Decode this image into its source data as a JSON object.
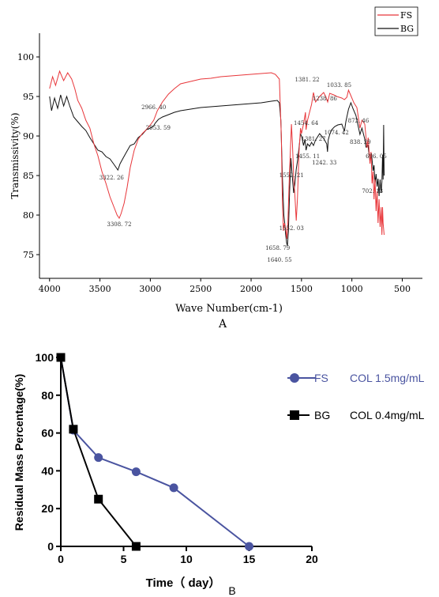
{
  "chart_data": [
    {
      "type": "line",
      "xlabel": "Wave Number(cm-1)",
      "ylabel": "Transmissivity(%)",
      "panel_label": "A",
      "xlim": [
        4100,
        300
      ],
      "ylim": [
        72,
        103
      ],
      "x_ticks": [
        "4000",
        "3500",
        "3000",
        "2500",
        "2000",
        "1500",
        "1000",
        "500"
      ],
      "y_ticks": [
        "75",
        "80",
        "85",
        "90",
        "95",
        "100"
      ],
      "legend_position": "top-right",
      "colors": {
        "FS": "#e8363a",
        "BG": "#111111"
      },
      "series": [
        {
          "name": "FS",
          "points": [
            [
              4000,
              96
            ],
            [
              3970,
              97.5
            ],
            [
              3940,
              96.4
            ],
            [
              3900,
              98.2
            ],
            [
              3860,
              97
            ],
            [
              3820,
              98
            ],
            [
              3780,
              97.2
            ],
            [
              3750,
              96
            ],
            [
              3720,
              94.5
            ],
            [
              3680,
              93.5
            ],
            [
              3640,
              92
            ],
            [
              3600,
              91
            ],
            [
              3560,
              89
            ],
            [
              3520,
              87.5
            ],
            [
              3480,
              85.5
            ],
            [
              3440,
              84
            ],
            [
              3400,
              82.3
            ],
            [
              3360,
              81
            ],
            [
              3330,
              80
            ],
            [
              3309,
              79.6
            ],
            [
              3290,
              80.2
            ],
            [
              3260,
              81.5
            ],
            [
              3230,
              83.5
            ],
            [
              3200,
              86
            ],
            [
              3160,
              88.2
            ],
            [
              3120,
              89.6
            ],
            [
              3080,
              90.3
            ],
            [
              3040,
              90.8
            ],
            [
              3000,
              91.4
            ],
            [
              2966,
              92
            ],
            [
              2930,
              93.2
            ],
            [
              2880,
              94.3
            ],
            [
              2820,
              95.3
            ],
            [
              2760,
              96
            ],
            [
              2700,
              96.6
            ],
            [
              2600,
              96.9
            ],
            [
              2500,
              97.2
            ],
            [
              2400,
              97.3
            ],
            [
              2300,
              97.5
            ],
            [
              2200,
              97.6
            ],
            [
              2100,
              97.7
            ],
            [
              2000,
              97.8
            ],
            [
              1900,
              97.9
            ],
            [
              1800,
              98
            ],
            [
              1760,
              97.8
            ],
            [
              1720,
              97.2
            ],
            [
              1700,
              90
            ],
            [
              1690,
              82
            ],
            [
              1680,
              78
            ],
            [
              1670,
              79
            ],
            [
              1658,
              78.4
            ],
            [
              1645,
              77
            ],
            [
              1635,
              79
            ],
            [
              1620,
              85
            ],
            [
              1600,
              91.5
            ],
            [
              1590,
              89
            ],
            [
              1575,
              84
            ],
            [
              1568,
              83
            ],
            [
              1552,
              79.3
            ],
            [
              1540,
              82
            ],
            [
              1525,
              88
            ],
            [
              1510,
              91
            ],
            [
              1500,
              90.3
            ],
            [
              1480,
              91.5
            ],
            [
              1460,
              93
            ],
            [
              1455,
              90.8
            ],
            [
              1440,
              92
            ],
            [
              1400,
              94
            ],
            [
              1381,
              95.5
            ],
            [
              1360,
              94.3
            ],
            [
              1320,
              95
            ],
            [
              1280,
              95.5
            ],
            [
              1260,
              95
            ],
            [
              1240,
              94.3
            ],
            [
              1220,
              95.4
            ],
            [
              1180,
              95.2
            ],
            [
              1150,
              95
            ],
            [
              1100,
              94.8
            ],
            [
              1074,
              94.6
            ],
            [
              1050,
              94.9
            ],
            [
              1033,
              95.8
            ],
            [
              1010,
              95.1
            ],
            [
              980,
              94.2
            ],
            [
              950,
              93.6
            ],
            [
              920,
              91
            ],
            [
              900,
              92
            ],
            [
              872,
              91.5
            ],
            [
              850,
              88.5
            ],
            [
              838,
              89.8
            ],
            [
              820,
              86.5
            ],
            [
              810,
              88
            ],
            [
              800,
              84
            ],
            [
              790,
              85.5
            ],
            [
              780,
              82
            ],
            [
              770,
              84.5
            ],
            [
              760,
              80.5
            ],
            [
              750,
              83
            ],
            [
              740,
              79
            ],
            [
              730,
              82
            ],
            [
              720,
              78.5
            ],
            [
              710,
              81
            ],
            [
              702,
              77.5
            ],
            [
              696,
              81
            ],
            [
              690,
              79
            ],
            [
              680,
              77.5
            ]
          ]
        },
        {
          "name": "BG",
          "points": [
            [
              4000,
              95
            ],
            [
              3980,
              93.2
            ],
            [
              3950,
              94.8
            ],
            [
              3920,
              93.5
            ],
            [
              3890,
              95.2
            ],
            [
              3860,
              93.8
            ],
            [
              3830,
              95
            ],
            [
              3800,
              93.8
            ],
            [
              3760,
              92.4
            ],
            [
              3720,
              91.8
            ],
            [
              3680,
              91.2
            ],
            [
              3640,
              90.7
            ],
            [
              3600,
              89.8
            ],
            [
              3560,
              89
            ],
            [
              3520,
              88.2
            ],
            [
              3480,
              88
            ],
            [
              3440,
              87.4
            ],
            [
              3400,
              87.1
            ],
            [
              3360,
              86.4
            ],
            [
              3322,
              85.7
            ],
            [
              3300,
              86.5
            ],
            [
              3270,
              87.2
            ],
            [
              3240,
              87.9
            ],
            [
              3200,
              88.8
            ],
            [
              3160,
              89
            ],
            [
              3120,
              89.8
            ],
            [
              3080,
              90.2
            ],
            [
              3040,
              90.8
            ],
            [
              3000,
              91
            ],
            [
              2966,
              91.3
            ],
            [
              2953,
              91.6
            ],
            [
              2920,
              92.1
            ],
            [
              2880,
              92.4
            ],
            [
              2820,
              92.7
            ],
            [
              2760,
              93
            ],
            [
              2700,
              93.2
            ],
            [
              2600,
              93.4
            ],
            [
              2500,
              93.6
            ],
            [
              2400,
              93.7
            ],
            [
              2300,
              93.8
            ],
            [
              2200,
              93.9
            ],
            [
              2100,
              94
            ],
            [
              2000,
              94.1
            ],
            [
              1900,
              94.2
            ],
            [
              1800,
              94.4
            ],
            [
              1740,
              94.5
            ],
            [
              1720,
              94.2
            ],
            [
              1705,
              92
            ],
            [
              1690,
              85
            ],
            [
              1675,
              80
            ],
            [
              1665,
              78.8
            ],
            [
              1658,
              77.6
            ],
            [
              1648,
              76.5
            ],
            [
              1640,
              76.1
            ],
            [
              1630,
              78
            ],
            [
              1618,
              83
            ],
            [
              1605,
              87.2
            ],
            [
              1592,
              85
            ],
            [
              1578,
              82.8
            ],
            [
              1565,
              84
            ],
            [
              1552,
              85.8
            ],
            [
              1540,
              86.8
            ],
            [
              1525,
              88.5
            ],
            [
              1510,
              90.3
            ],
            [
              1495,
              89.8
            ],
            [
              1480,
              88.8
            ],
            [
              1465,
              89.6
            ],
            [
              1455,
              88.2
            ],
            [
              1440,
              89
            ],
            [
              1420,
              88.7
            ],
            [
              1400,
              89.2
            ],
            [
              1381,
              88.8
            ],
            [
              1360,
              89.5
            ],
            [
              1320,
              90.3
            ],
            [
              1280,
              89.7
            ],
            [
              1250,
              89
            ],
            [
              1242,
              88
            ],
            [
              1235,
              89.5
            ],
            [
              1220,
              90.2
            ],
            [
              1200,
              90.8
            ],
            [
              1170,
              91.2
            ],
            [
              1140,
              91.4
            ],
            [
              1100,
              91.5
            ],
            [
              1074,
              90.6
            ],
            [
              1060,
              91.8
            ],
            [
              1033,
              93.4
            ],
            [
              1010,
              94.2
            ],
            [
              990,
              93.5
            ],
            [
              960,
              92.6
            ],
            [
              940,
              91.4
            ],
            [
              920,
              90.2
            ],
            [
              900,
              91
            ],
            [
              872,
              89.6
            ],
            [
              860,
              88.6
            ],
            [
              840,
              88.8
            ],
            [
              820,
              86.8
            ],
            [
              805,
              87.8
            ],
            [
              790,
              85.6
            ],
            [
              780,
              86.3
            ],
            [
              770,
              84
            ],
            [
              760,
              85.2
            ],
            [
              750,
              83.6
            ],
            [
              740,
              84.6
            ],
            [
              730,
              82.4
            ],
            [
              720,
              84.5
            ],
            [
              710,
              82.8
            ],
            [
              702,
              84.2
            ],
            [
              696,
              87.6
            ],
            [
              690,
              84.5
            ],
            [
              685,
              91.4
            ],
            [
              680,
              85
            ]
          ]
        }
      ],
      "annotations": [
        {
          "text": "3308. 72",
          "x": 3309,
          "y": 79.6
        },
        {
          "text": "3322. 26",
          "x": 3322,
          "y": 85.7
        },
        {
          "text": "2966. 40",
          "x": 2966,
          "y": 92
        },
        {
          "text": "2953. 59",
          "x": 2953,
          "y": 91.6
        },
        {
          "text": "1658. 79",
          "x": 1658,
          "y": 77.6
        },
        {
          "text": "1640. 55",
          "x": 1640,
          "y": 76.1
        },
        {
          "text": "1552. 03",
          "x": 1552,
          "y": 79.3
        },
        {
          "text": "1552. 21",
          "x": 1552,
          "y": 85.8
        },
        {
          "text": "1455. 11",
          "x": 1455,
          "y": 88.2
        },
        {
          "text": "1454. 64",
          "x": 1455,
          "y": 90.8
        },
        {
          "text": "1381. 22",
          "x": 1381,
          "y": 95.5
        },
        {
          "text": "1381. 27",
          "x": 1381,
          "y": 88.8
        },
        {
          "text": "1242. 33",
          "x": 1242,
          "y": 88
        },
        {
          "text": "1238. 86",
          "x": 1238,
          "y": 94.3
        },
        {
          "text": "1074. 42",
          "x": 1074,
          "y": 90.6
        },
        {
          "text": "1033. 85",
          "x": 1033,
          "y": 95.8
        },
        {
          "text": "872. 46",
          "x": 872,
          "y": 91.5
        },
        {
          "text": "838. 29",
          "x": 838,
          "y": 89.8
        },
        {
          "text": "696. 05",
          "x": 696,
          "y": 87.6
        },
        {
          "text": "702. 13",
          "x": 702,
          "y": 84.2
        }
      ]
    },
    {
      "type": "line",
      "xlabel": "Time（ day）",
      "ylabel": "Residual Mass Percentage(%)",
      "panel_label": "B",
      "xlim": [
        0,
        20
      ],
      "ylim": [
        0,
        100
      ],
      "x_ticks": [
        "0",
        "5",
        "10",
        "15",
        "20"
      ],
      "y_ticks": [
        "0",
        "20",
        "40",
        "60",
        "80",
        "100"
      ],
      "legend_position": "right",
      "series": [
        {
          "name": "FS",
          "label": "COL 1.5mg/mL",
          "color": "#4a54a0",
          "marker": "circle",
          "x": [
            0,
            1,
            3,
            6,
            9,
            15
          ],
          "y": [
            100,
            61.5,
            47,
            39.5,
            31,
            0
          ]
        },
        {
          "name": "BG",
          "label": "COL 0.4mg/mL",
          "color": "#000000",
          "marker": "square",
          "x": [
            0,
            1,
            3,
            6
          ],
          "y": [
            100,
            62,
            25,
            0
          ]
        }
      ]
    }
  ]
}
